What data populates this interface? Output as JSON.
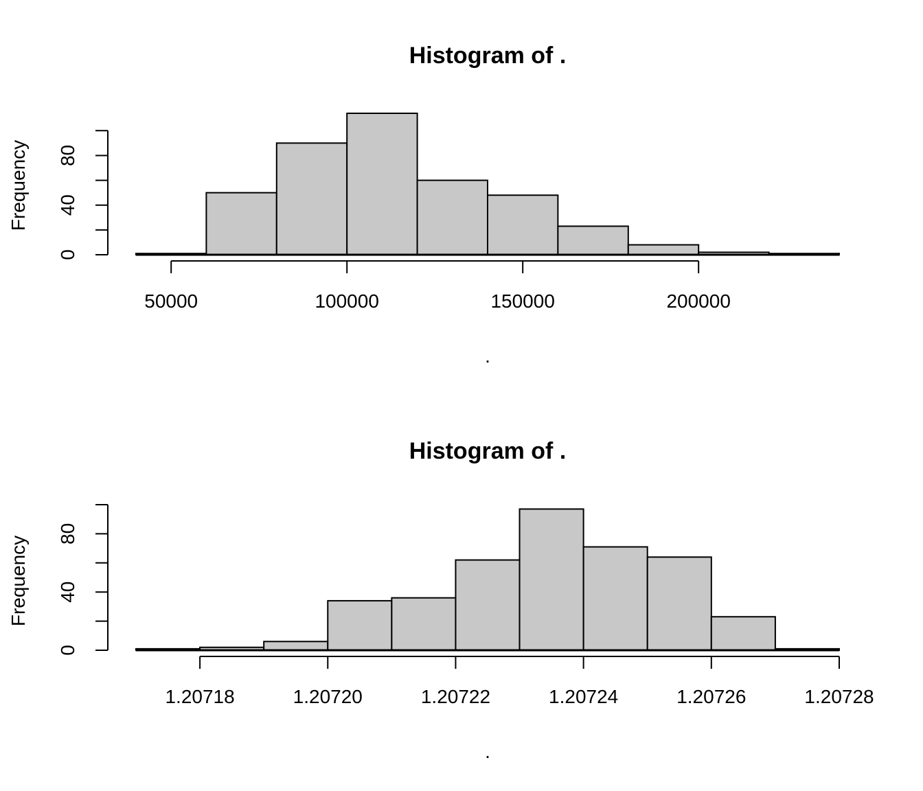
{
  "chart_data": [
    {
      "type": "bar",
      "title": "Histogram of .",
      "xlabel": ".",
      "ylabel": "Frequency",
      "bin_edges": [
        40000,
        60000,
        80000,
        100000,
        120000,
        140000,
        160000,
        180000,
        200000,
        220000,
        240000
      ],
      "values": [
        1,
        50,
        90,
        114,
        60,
        48,
        23,
        8,
        2,
        1
      ],
      "xlim": [
        40000,
        240000
      ],
      "ylim": [
        0,
        114
      ],
      "x_ticks": [
        50000,
        100000,
        150000,
        200000
      ],
      "x_tick_labels": [
        "50000",
        "100000",
        "150000",
        "200000"
      ],
      "y_ticks": [
        0,
        20,
        40,
        60,
        80,
        100
      ],
      "y_tick_labels": [
        {
          "value": 0,
          "label": "0"
        },
        {
          "value": 40,
          "label": "40"
        },
        {
          "value": 80,
          "label": "80"
        }
      ],
      "grid": false
    },
    {
      "type": "bar",
      "title": "Histogram of .",
      "xlabel": ".",
      "ylabel": "Frequency",
      "bin_edges": [
        1.20717,
        1.20718,
        1.20719,
        1.2072,
        1.20721,
        1.20722,
        1.20723,
        1.20724,
        1.20725,
        1.20726,
        1.20727,
        1.20728
      ],
      "values": [
        1,
        2,
        6,
        34,
        36,
        62,
        97,
        71,
        64,
        23,
        1
      ],
      "xlim": [
        1.20717,
        1.20728
      ],
      "ylim": [
        0,
        100
      ],
      "x_ticks": [
        1.20718,
        1.2072,
        1.20722,
        1.20724,
        1.20726,
        1.20728
      ],
      "x_tick_labels": [
        "1.20718",
        "1.20720",
        "1.20722",
        "1.20724",
        "1.20726",
        "1.20728"
      ],
      "y_ticks": [
        0,
        20,
        40,
        60,
        80,
        100
      ],
      "y_tick_labels": [
        {
          "value": 0,
          "label": "0"
        },
        {
          "value": 40,
          "label": "40"
        },
        {
          "value": 80,
          "label": "80"
        }
      ],
      "grid": false
    }
  ]
}
